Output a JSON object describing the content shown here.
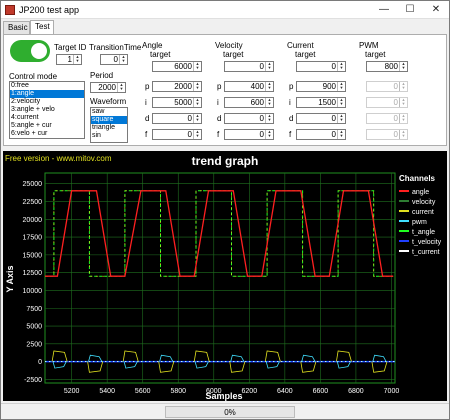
{
  "window": {
    "title": "JP200 test app",
    "minimize": "—",
    "maximize": "☐",
    "close": "✕"
  },
  "tabs": [
    {
      "label": "Basic"
    },
    {
      "label": "Test"
    }
  ],
  "controls": {
    "target_id_label": "Target ID",
    "target_id_value": "1",
    "transition_label": "TransitionTime",
    "transition_value": "0",
    "period_label": "Period",
    "period_value": "2000",
    "control_mode_label": "Control mode",
    "control_modes": [
      "0:free",
      "1:angle",
      "2:velocity",
      "3:angle + velo",
      "4:current",
      "5:angle + cur",
      "6:velo + cur"
    ],
    "waveform_label": "Waveform",
    "waveforms": [
      "saw",
      "square",
      "triangle",
      "sin"
    ]
  },
  "groups": {
    "angle": {
      "title": "Angle",
      "target_label": "target",
      "target": "6000",
      "p": "2000",
      "i": "5000",
      "d": "0",
      "f": "0"
    },
    "velocity": {
      "title": "Velocity",
      "target_label": "target",
      "target": "0",
      "p": "400",
      "i": "600",
      "d": "0",
      "f": "0"
    },
    "current": {
      "title": "Current",
      "target_label": "target",
      "target": "0",
      "p": "900",
      "i": "1500",
      "d": "0",
      "f": "0"
    },
    "pwm": {
      "title": "PWM",
      "target_label": "target",
      "target": "800",
      "p": "0",
      "i": "0",
      "d": "0",
      "f": "0"
    }
  },
  "pid_labels": {
    "p": "p",
    "i": "i",
    "d": "d",
    "f": "f"
  },
  "chart_data": {
    "type": "line",
    "title": "trend graph",
    "watermark": "Free version - www.mitov.com",
    "xlabel": "Samples",
    "ylabel": "Y Axis",
    "xlim": [
      5050,
      7020
    ],
    "ylim": [
      -3000,
      26500
    ],
    "x_ticks": [
      "5200",
      "5400",
      "5600",
      "5800",
      "6000",
      "6200",
      "6400",
      "6600",
      "6800",
      "7000"
    ],
    "y_ticks": [
      "25000",
      "22500",
      "20000",
      "17500",
      "15000",
      "12500",
      "10000",
      "7500",
      "5000",
      "2500",
      "0",
      "-2500"
    ],
    "legend_title": "Channels",
    "legend_position": "right",
    "series": [
      {
        "name": "angle",
        "color": "#ff2020"
      },
      {
        "name": "velocity",
        "color": "#2e7d32"
      },
      {
        "name": "current",
        "color": "#e0e020"
      },
      {
        "name": "pwm",
        "color": "#40e0ff"
      },
      {
        "name": "t_angle",
        "color": "#20ff20"
      },
      {
        "name": "t_velocity",
        "color": "#2040ff"
      },
      {
        "name": "t_current",
        "color": "#ffffff"
      }
    ],
    "angle_points": [
      [
        5050,
        12000
      ],
      [
        5120,
        12000
      ],
      [
        5200,
        24000
      ],
      [
        5340,
        24000
      ],
      [
        5420,
        12000
      ],
      [
        5500,
        12000
      ],
      [
        5590,
        24000
      ],
      [
        5730,
        24000
      ],
      [
        5810,
        12000
      ],
      [
        5890,
        12000
      ],
      [
        5970,
        24000
      ],
      [
        6110,
        24000
      ],
      [
        6190,
        12000
      ],
      [
        6270,
        12000
      ],
      [
        6350,
        24000
      ],
      [
        6490,
        24000
      ],
      [
        6570,
        12000
      ],
      [
        6650,
        12000
      ],
      [
        6730,
        24000
      ],
      [
        6870,
        24000
      ],
      [
        6950,
        12000
      ],
      [
        7010,
        12000
      ]
    ],
    "target_points": [
      [
        5050,
        12000
      ],
      [
        5100,
        12000
      ],
      [
        5100,
        24000
      ],
      [
        5300,
        24000
      ],
      [
        5300,
        12000
      ],
      [
        5500,
        12000
      ],
      [
        5500,
        24000
      ],
      [
        5700,
        24000
      ],
      [
        5700,
        12000
      ],
      [
        5900,
        12000
      ],
      [
        5900,
        24000
      ],
      [
        6100,
        24000
      ],
      [
        6100,
        12000
      ],
      [
        6300,
        12000
      ],
      [
        6300,
        24000
      ],
      [
        6500,
        24000
      ],
      [
        6500,
        12000
      ],
      [
        6700,
        12000
      ],
      [
        6700,
        24000
      ],
      [
        6900,
        24000
      ],
      [
        6900,
        12000
      ],
      [
        7010,
        12000
      ]
    ]
  },
  "status": {
    "progress_percent": 0,
    "progress_text": "0%"
  }
}
